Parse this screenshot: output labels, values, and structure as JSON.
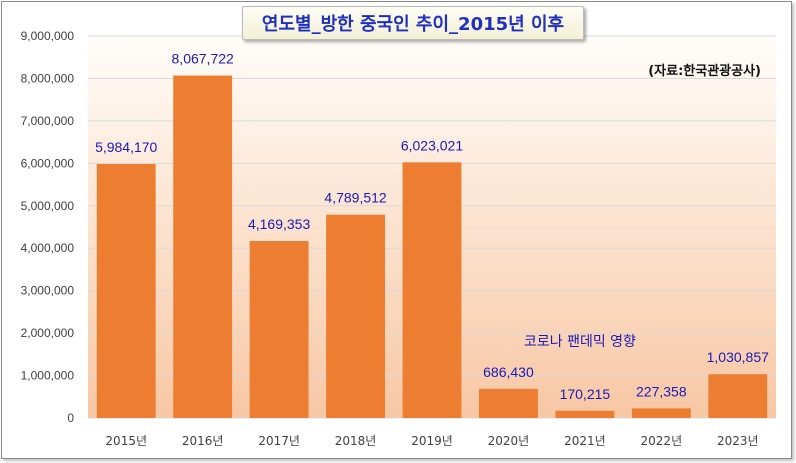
{
  "chart_data": {
    "type": "bar",
    "title": "연도별_방한 중국인 추이_2015년 이후",
    "source_note": "(자료:한국관광공사)",
    "annotation": "코로나 팬데믹 영향",
    "categories": [
      "2015년",
      "2016년",
      "2017년",
      "2018년",
      "2019년",
      "2020년",
      "2021년",
      "2022년",
      "2023년"
    ],
    "values": [
      5984170,
      8067722,
      4169353,
      4789512,
      6023021,
      686430,
      170215,
      227358,
      1030857
    ],
    "value_labels": [
      "5,984,170",
      "8,067,722",
      "4,169,353",
      "4,789,512",
      "6,023,021",
      "686,430",
      "170,215",
      "227,358",
      "1,030,857"
    ],
    "y_ticks": [
      0,
      1000000,
      2000000,
      3000000,
      4000000,
      5000000,
      6000000,
      7000000,
      8000000,
      9000000
    ],
    "y_tick_labels": [
      "0",
      "1,000,000",
      "2,000,000",
      "3,000,000",
      "4,000,000",
      "5,000,000",
      "6,000,000",
      "7,000,000",
      "8,000,000",
      "9,000,000"
    ],
    "ylim": [
      0,
      9000000
    ],
    "grid": true,
    "colors": {
      "bar": "#ed7d31",
      "value_label": "#1a1ab8",
      "axis_text": "#404040",
      "gridline": "#d9d9d9"
    }
  }
}
